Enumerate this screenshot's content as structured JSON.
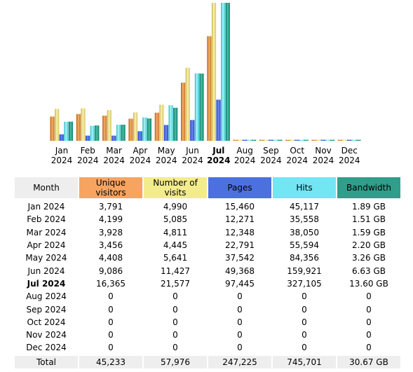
{
  "colors": {
    "visitors": "#e8923f",
    "visits": "#f2e68a",
    "pages": "#4466e8",
    "hits": "#66eef2",
    "bandwidth": "#2a9f88",
    "month_header": "#eeeeee",
    "total_row": "#eeeeee"
  },
  "chart_data": {
    "type": "bar",
    "categories": [
      "Jan 2024",
      "Feb 2024",
      "Mar 2024",
      "Apr 2024",
      "May 2024",
      "Jun 2024",
      "Jul 2024",
      "Aug 2024",
      "Sep 2024",
      "Oct 2024",
      "Nov 2024",
      "Dec 2024"
    ],
    "category_labels": [
      {
        "month": "Jan",
        "year": "2024"
      },
      {
        "month": "Feb",
        "year": "2024"
      },
      {
        "month": "Mar",
        "year": "2024"
      },
      {
        "month": "Apr",
        "year": "2024"
      },
      {
        "month": "May",
        "year": "2024"
      },
      {
        "month": "Jun",
        "year": "2024"
      },
      {
        "month": "Jul",
        "year": "2024"
      },
      {
        "month": "Aug",
        "year": "2024"
      },
      {
        "month": "Sep",
        "year": "2024"
      },
      {
        "month": "Oct",
        "year": "2024"
      },
      {
        "month": "Nov",
        "year": "2024"
      },
      {
        "month": "Dec",
        "year": "2024"
      }
    ],
    "current_index": 6,
    "series": [
      {
        "name": "Unique visitors",
        "values": [
          3791,
          4199,
          3928,
          3456,
          4408,
          9086,
          16365,
          0,
          0,
          0,
          0,
          0
        ]
      },
      {
        "name": "Number of visits",
        "values": [
          4990,
          5085,
          4811,
          4445,
          5641,
          11427,
          21577,
          0,
          0,
          0,
          0,
          0
        ]
      },
      {
        "name": "Pages",
        "values": [
          15460,
          12271,
          12348,
          22791,
          37542,
          49368,
          97445,
          0,
          0,
          0,
          0,
          0
        ]
      },
      {
        "name": "Hits",
        "values": [
          45117,
          35558,
          38050,
          55594,
          84356,
          159921,
          327105,
          0,
          0,
          0,
          0,
          0
        ]
      },
      {
        "name": "Bandwidth (GB)",
        "values": [
          1.89,
          1.51,
          1.59,
          2.2,
          3.26,
          6.63,
          13.6,
          0,
          0,
          0,
          0,
          0
        ]
      }
    ]
  },
  "table": {
    "headers": {
      "month": "Month",
      "visitors": "Unique visitors",
      "visits": "Number of visits",
      "pages": "Pages",
      "hits": "Hits",
      "bandwidth": "Bandwidth"
    },
    "rows": [
      {
        "month": "Jan 2024",
        "visitors": "3,791",
        "visits": "4,990",
        "pages": "15,460",
        "hits": "45,117",
        "bandwidth": "1.89 GB"
      },
      {
        "month": "Feb 2024",
        "visitors": "4,199",
        "visits": "5,085",
        "pages": "12,271",
        "hits": "35,558",
        "bandwidth": "1.51 GB"
      },
      {
        "month": "Mar 2024",
        "visitors": "3,928",
        "visits": "4,811",
        "pages": "12,348",
        "hits": "38,050",
        "bandwidth": "1.59 GB"
      },
      {
        "month": "Apr 2024",
        "visitors": "3,456",
        "visits": "4,445",
        "pages": "22,791",
        "hits": "55,594",
        "bandwidth": "2.20 GB"
      },
      {
        "month": "May 2024",
        "visitors": "4,408",
        "visits": "5,641",
        "pages": "37,542",
        "hits": "84,356",
        "bandwidth": "3.26 GB"
      },
      {
        "month": "Jun 2024",
        "visitors": "9,086",
        "visits": "11,427",
        "pages": "49,368",
        "hits": "159,921",
        "bandwidth": "6.63 GB"
      },
      {
        "month": "Jul 2024",
        "visitors": "16,365",
        "visits": "21,577",
        "pages": "97,445",
        "hits": "327,105",
        "bandwidth": "13.60 GB"
      },
      {
        "month": "Aug 2024",
        "visitors": "0",
        "visits": "0",
        "pages": "0",
        "hits": "0",
        "bandwidth": "0"
      },
      {
        "month": "Sep 2024",
        "visitors": "0",
        "visits": "0",
        "pages": "0",
        "hits": "0",
        "bandwidth": "0"
      },
      {
        "month": "Oct 2024",
        "visitors": "0",
        "visits": "0",
        "pages": "0",
        "hits": "0",
        "bandwidth": "0"
      },
      {
        "month": "Nov 2024",
        "visitors": "0",
        "visits": "0",
        "pages": "0",
        "hits": "0",
        "bandwidth": "0"
      },
      {
        "month": "Dec 2024",
        "visitors": "0",
        "visits": "0",
        "pages": "0",
        "hits": "0",
        "bandwidth": "0"
      }
    ],
    "current_row_index": 6,
    "total": {
      "label": "Total",
      "visitors": "45,233",
      "visits": "57,976",
      "pages": "247,225",
      "hits": "745,701",
      "bandwidth": "30.67 GB"
    }
  }
}
